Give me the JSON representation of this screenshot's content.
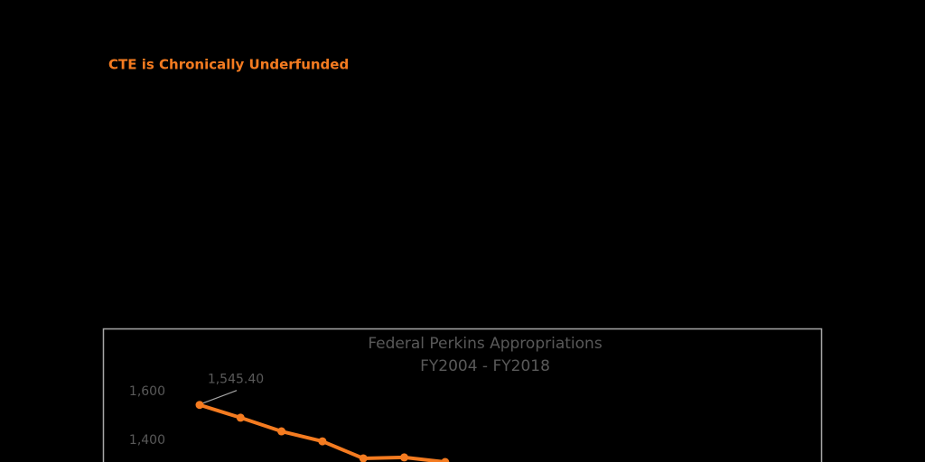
{
  "heading": "CTE is Chronically Underfunded",
  "chart_data": {
    "type": "line",
    "title": "Federal Perkins Appropriations",
    "subtitle": "FY2004 - FY2018",
    "categories": [
      null,
      null,
      null,
      null,
      null,
      null,
      null
    ],
    "series": [
      {
        "color": "#f47b20",
        "values": [
          1545.4,
          1493,
          1437,
          1396,
          1326,
          1330,
          1311
        ],
        "value_labels": [
          "1,545.40",
          null,
          null,
          null,
          null,
          null,
          null
        ]
      }
    ],
    "ylim": [
      1300,
      1650
    ],
    "yticks": [
      {
        "value": 1600,
        "label": "1,600"
      },
      {
        "value": 1400,
        "label": "1,400"
      }
    ]
  }
}
